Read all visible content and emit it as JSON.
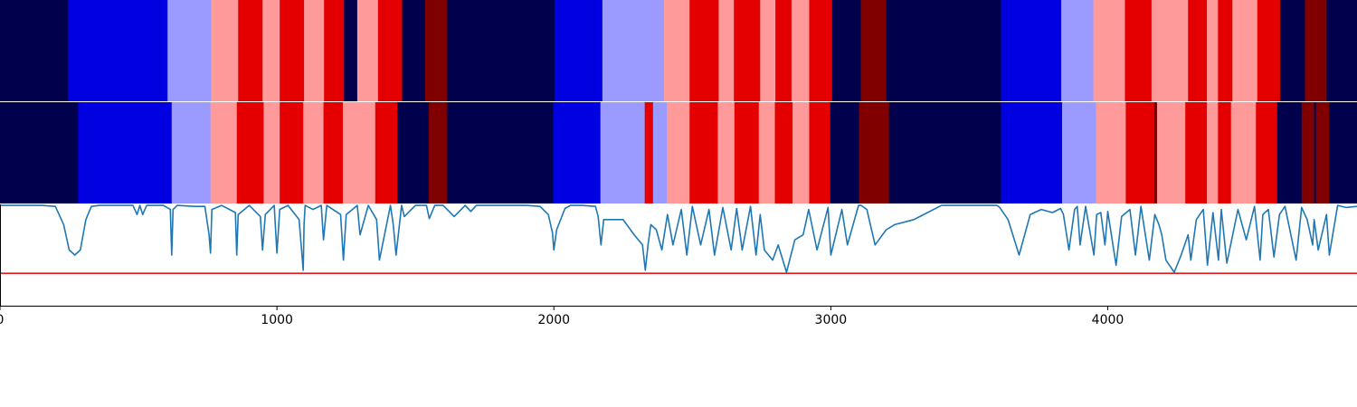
{
  "chart_data": {
    "type": "segmentation-timeline",
    "xlim": [
      0,
      4900
    ],
    "x_ticks": [
      0,
      1000,
      2000,
      3000,
      4000
    ],
    "x_tick_labels": [
      "0",
      "1000",
      "2000",
      "3000",
      "4000"
    ],
    "grid": false,
    "legend": "none",
    "colors": {
      "dark_navy": "#00004c",
      "blue": "#0000e0",
      "light_blue": "#9a9aff",
      "pink": "#ff9a9a",
      "red": "#e40000",
      "dark_red": "#800000",
      "signal_line": "#1f77b4",
      "threshold_line": "#e41a1c"
    },
    "segment_rows": [
      {
        "segments": [
          {
            "start": 0,
            "end": 245,
            "class": "dark_navy"
          },
          {
            "start": 245,
            "end": 605,
            "class": "blue"
          },
          {
            "start": 605,
            "end": 762,
            "class": "light_blue"
          },
          {
            "start": 762,
            "end": 860,
            "class": "pink"
          },
          {
            "start": 860,
            "end": 948,
            "class": "red"
          },
          {
            "start": 948,
            "end": 1010,
            "class": "pink"
          },
          {
            "start": 1010,
            "end": 1098,
            "class": "red"
          },
          {
            "start": 1098,
            "end": 1170,
            "class": "pink"
          },
          {
            "start": 1170,
            "end": 1242,
            "class": "red"
          },
          {
            "start": 1242,
            "end": 1290,
            "class": "dark_navy"
          },
          {
            "start": 1290,
            "end": 1365,
            "class": "pink"
          },
          {
            "start": 1365,
            "end": 1452,
            "class": "red"
          },
          {
            "start": 1452,
            "end": 1535,
            "class": "dark_navy"
          },
          {
            "start": 1535,
            "end": 1615,
            "class": "dark_red"
          },
          {
            "start": 1615,
            "end": 2002,
            "class": "dark_navy"
          },
          {
            "start": 2002,
            "end": 2175,
            "class": "blue"
          },
          {
            "start": 2175,
            "end": 2398,
            "class": "light_blue"
          },
          {
            "start": 2398,
            "end": 2490,
            "class": "pink"
          },
          {
            "start": 2490,
            "end": 2595,
            "class": "red"
          },
          {
            "start": 2595,
            "end": 2650,
            "class": "pink"
          },
          {
            "start": 2650,
            "end": 2745,
            "class": "red"
          },
          {
            "start": 2745,
            "end": 2800,
            "class": "pink"
          },
          {
            "start": 2800,
            "end": 2858,
            "class": "red"
          },
          {
            "start": 2858,
            "end": 2922,
            "class": "pink"
          },
          {
            "start": 2922,
            "end": 3005,
            "class": "red"
          },
          {
            "start": 3005,
            "end": 3108,
            "class": "dark_navy"
          },
          {
            "start": 3108,
            "end": 3200,
            "class": "dark_red"
          },
          {
            "start": 3200,
            "end": 3615,
            "class": "dark_navy"
          },
          {
            "start": 3615,
            "end": 3832,
            "class": "blue"
          },
          {
            "start": 3832,
            "end": 3948,
            "class": "light_blue"
          },
          {
            "start": 3948,
            "end": 4062,
            "class": "pink"
          },
          {
            "start": 4062,
            "end": 4158,
            "class": "red"
          },
          {
            "start": 4158,
            "end": 4290,
            "class": "pink"
          },
          {
            "start": 4290,
            "end": 4358,
            "class": "red"
          },
          {
            "start": 4358,
            "end": 4398,
            "class": "pink"
          },
          {
            "start": 4398,
            "end": 4450,
            "class": "red"
          },
          {
            "start": 4450,
            "end": 4540,
            "class": "pink"
          },
          {
            "start": 4540,
            "end": 4622,
            "class": "red"
          },
          {
            "start": 4622,
            "end": 4712,
            "class": "dark_navy"
          },
          {
            "start": 4712,
            "end": 4790,
            "class": "dark_red"
          },
          {
            "start": 4790,
            "end": 4900,
            "class": "dark_navy"
          }
        ]
      },
      {
        "segments": [
          {
            "start": 0,
            "end": 282,
            "class": "dark_navy"
          },
          {
            "start": 282,
            "end": 620,
            "class": "blue"
          },
          {
            "start": 620,
            "end": 760,
            "class": "light_blue"
          },
          {
            "start": 760,
            "end": 855,
            "class": "pink"
          },
          {
            "start": 855,
            "end": 952,
            "class": "red"
          },
          {
            "start": 952,
            "end": 1010,
            "class": "pink"
          },
          {
            "start": 1010,
            "end": 1095,
            "class": "red"
          },
          {
            "start": 1095,
            "end": 1168,
            "class": "pink"
          },
          {
            "start": 1168,
            "end": 1238,
            "class": "red"
          },
          {
            "start": 1238,
            "end": 1355,
            "class": "pink"
          },
          {
            "start": 1355,
            "end": 1435,
            "class": "red"
          },
          {
            "start": 1435,
            "end": 1548,
            "class": "dark_navy"
          },
          {
            "start": 1548,
            "end": 1615,
            "class": "dark_red"
          },
          {
            "start": 1615,
            "end": 1998,
            "class": "dark_navy"
          },
          {
            "start": 1998,
            "end": 2168,
            "class": "blue"
          },
          {
            "start": 2168,
            "end": 2328,
            "class": "light_blue"
          },
          {
            "start": 2328,
            "end": 2358,
            "class": "red"
          },
          {
            "start": 2358,
            "end": 2408,
            "class": "light_blue"
          },
          {
            "start": 2408,
            "end": 2490,
            "class": "pink"
          },
          {
            "start": 2490,
            "end": 2592,
            "class": "red"
          },
          {
            "start": 2592,
            "end": 2652,
            "class": "pink"
          },
          {
            "start": 2652,
            "end": 2740,
            "class": "red"
          },
          {
            "start": 2740,
            "end": 2798,
            "class": "pink"
          },
          {
            "start": 2798,
            "end": 2862,
            "class": "red"
          },
          {
            "start": 2862,
            "end": 2922,
            "class": "pink"
          },
          {
            "start": 2922,
            "end": 2998,
            "class": "red"
          },
          {
            "start": 2998,
            "end": 3102,
            "class": "dark_navy"
          },
          {
            "start": 3102,
            "end": 3210,
            "class": "dark_red"
          },
          {
            "start": 3210,
            "end": 3615,
            "class": "dark_navy"
          },
          {
            "start": 3615,
            "end": 3835,
            "class": "blue"
          },
          {
            "start": 3835,
            "end": 3958,
            "class": "light_blue"
          },
          {
            "start": 3958,
            "end": 4065,
            "class": "pink"
          },
          {
            "start": 4065,
            "end": 4168,
            "class": "red"
          },
          {
            "start": 4168,
            "end": 4178,
            "class": "dark_red"
          },
          {
            "start": 4178,
            "end": 4280,
            "class": "pink"
          },
          {
            "start": 4280,
            "end": 4358,
            "class": "red"
          },
          {
            "start": 4358,
            "end": 4398,
            "class": "pink"
          },
          {
            "start": 4398,
            "end": 4445,
            "class": "red"
          },
          {
            "start": 4445,
            "end": 4535,
            "class": "pink"
          },
          {
            "start": 4535,
            "end": 4612,
            "class": "red"
          },
          {
            "start": 4612,
            "end": 4700,
            "class": "dark_navy"
          },
          {
            "start": 4700,
            "end": 4745,
            "class": "dark_red"
          },
          {
            "start": 4745,
            "end": 4752,
            "class": "dark_navy"
          },
          {
            "start": 4752,
            "end": 4800,
            "class": "dark_red"
          },
          {
            "start": 4800,
            "end": 4900,
            "class": "dark_navy"
          }
        ]
      }
    ],
    "signal": {
      "ylim": [
        0,
        1
      ],
      "threshold": 0.32,
      "x": [
        0,
        50,
        100,
        150,
        200,
        230,
        250,
        270,
        290,
        310,
        330,
        360,
        400,
        450,
        480,
        495,
        505,
        515,
        530,
        560,
        590,
        615,
        620,
        625,
        640,
        700,
        740,
        755,
        760,
        765,
        800,
        850,
        855,
        860,
        900,
        940,
        948,
        958,
        990,
        1000,
        1010,
        1040,
        1080,
        1095,
        1098,
        1102,
        1130,
        1160,
        1168,
        1180,
        1230,
        1240,
        1250,
        1290,
        1300,
        1330,
        1360,
        1370,
        1410,
        1420,
        1430,
        1450,
        1460,
        1500,
        1540,
        1550,
        1570,
        1600,
        1640,
        1680,
        1700,
        1720,
        1750,
        1800,
        1900,
        1950,
        1980,
        1995,
        2000,
        2010,
        2040,
        2060,
        2100,
        2150,
        2160,
        2170,
        2180,
        2200,
        2250,
        2290,
        2320,
        2330,
        2340,
        2350,
        2370,
        2390,
        2410,
        2430,
        2460,
        2480,
        2500,
        2530,
        2560,
        2580,
        2610,
        2640,
        2660,
        2680,
        2710,
        2730,
        2745,
        2760,
        2790,
        2810,
        2840,
        2870,
        2900,
        2920,
        2950,
        2990,
        3000,
        3040,
        3060,
        3100,
        3110,
        3130,
        3160,
        3200,
        3230,
        3300,
        3400,
        3500,
        3550,
        3580,
        3600,
        3610,
        3640,
        3680,
        3720,
        3760,
        3800,
        3830,
        3840,
        3860,
        3880,
        3890,
        3900,
        3920,
        3950,
        3960,
        3975,
        3990,
        4000,
        4030,
        4050,
        4080,
        4100,
        4120,
        4150,
        4170,
        4185,
        4195,
        4210,
        4240,
        4265,
        4290,
        4300,
        4320,
        4345,
        4360,
        4380,
        4400,
        4410,
        4430,
        4470,
        4500,
        4530,
        4550,
        4560,
        4580,
        4600,
        4620,
        4640,
        4680,
        4700,
        4720,
        4740,
        4745,
        4760,
        4790,
        4800,
        4830,
        4860,
        4900
      ],
      "y": [
        0.99,
        0.99,
        0.99,
        0.99,
        0.98,
        0.8,
        0.55,
        0.5,
        0.55,
        0.85,
        0.98,
        0.99,
        0.99,
        0.99,
        0.99,
        0.9,
        0.99,
        0.9,
        0.99,
        0.99,
        0.99,
        0.95,
        0.5,
        0.95,
        0.99,
        0.98,
        0.98,
        0.7,
        0.52,
        0.95,
        0.99,
        0.92,
        0.5,
        0.9,
        0.99,
        0.88,
        0.55,
        0.9,
        0.99,
        0.52,
        0.95,
        0.99,
        0.85,
        0.35,
        0.8,
        0.99,
        0.95,
        0.99,
        0.65,
        0.99,
        0.9,
        0.45,
        0.9,
        0.99,
        0.7,
        0.99,
        0.85,
        0.45,
        0.99,
        0.8,
        0.5,
        0.99,
        0.88,
        0.99,
        0.99,
        0.86,
        0.99,
        0.99,
        0.88,
        0.99,
        0.93,
        0.99,
        0.99,
        0.99,
        0.99,
        0.98,
        0.9,
        0.72,
        0.55,
        0.75,
        0.96,
        0.99,
        0.99,
        0.98,
        0.88,
        0.6,
        0.85,
        0.85,
        0.85,
        0.7,
        0.6,
        0.35,
        0.6,
        0.8,
        0.75,
        0.55,
        0.9,
        0.6,
        0.95,
        0.5,
        0.98,
        0.6,
        0.95,
        0.5,
        0.97,
        0.55,
        0.96,
        0.55,
        0.98,
        0.5,
        0.9,
        0.55,
        0.45,
        0.6,
        0.33,
        0.65,
        0.7,
        0.95,
        0.55,
        0.97,
        0.5,
        0.95,
        0.6,
        0.99,
        0.99,
        0.95,
        0.6,
        0.75,
        0.8,
        0.85,
        0.99,
        0.99,
        0.99,
        0.99,
        0.99,
        0.97,
        0.85,
        0.5,
        0.9,
        0.95,
        0.92,
        0.96,
        0.9,
        0.55,
        0.95,
        0.98,
        0.6,
        0.98,
        0.5,
        0.9,
        0.92,
        0.6,
        0.93,
        0.4,
        0.88,
        0.95,
        0.5,
        0.98,
        0.45,
        0.9,
        0.8,
        0.7,
        0.45,
        0.33,
        0.5,
        0.7,
        0.45,
        0.85,
        0.95,
        0.4,
        0.92,
        0.45,
        0.95,
        0.42,
        0.95,
        0.65,
        0.98,
        0.45,
        0.9,
        0.95,
        0.48,
        0.9,
        0.98,
        0.45,
        0.97,
        0.85,
        0.6,
        0.85,
        0.55,
        0.9,
        0.5,
        0.99,
        0.97,
        0.98
      ]
    }
  }
}
